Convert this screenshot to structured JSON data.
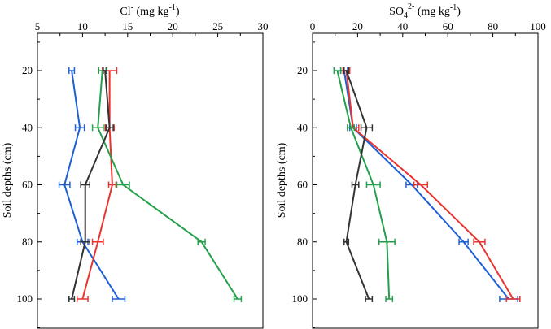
{
  "chart_data": [
    {
      "type": "line",
      "title": "Cl",
      "title_sup": "-",
      "title_suffix": " (mg kg",
      "title_suffix_sup": "-1",
      "title_end": ")",
      "ylabel": "Soil depths (cm)",
      "xlim": [
        5,
        30
      ],
      "x_ticks": [
        "5",
        "10",
        "15",
        "20",
        "25",
        "30"
      ],
      "ylim": [
        8,
        110
      ],
      "y_ticks": [
        "20",
        "40",
        "60",
        "80",
        "100"
      ],
      "y_inverted": true,
      "x_axis_position": "top",
      "depths": [
        20,
        40,
        60,
        80,
        100
      ],
      "series": [
        {
          "color": "#1f5fd6",
          "values": [
            8.8,
            9.7,
            8.0,
            10.0,
            14.0
          ],
          "errors": [
            0.3,
            0.5,
            0.6,
            0.6,
            0.7
          ]
        },
        {
          "color": "#e8332f",
          "values": [
            13.0,
            13.0,
            13.3,
            11.7,
            10.0
          ],
          "errors": [
            0.8,
            0.5,
            0.4,
            0.6,
            0.6
          ]
        },
        {
          "color": "#22a04a",
          "values": [
            12.2,
            11.7,
            14.5,
            23.2,
            27.2
          ],
          "errors": [
            0.4,
            0.6,
            0.7,
            0.4,
            0.4
          ]
        },
        {
          "color": "#333333",
          "values": [
            12.5,
            13.0,
            10.3,
            10.3,
            8.8
          ],
          "errors": [
            0.2,
            0.4,
            0.5,
            0.5,
            0.3
          ]
        }
      ]
    },
    {
      "type": "line",
      "title": "SO",
      "title_sub": "4",
      "title_sup": "2-",
      "title_suffix": " (mg kg",
      "title_suffix_sup": "-1",
      "title_end": ")",
      "ylabel": "Soil depths (cm)",
      "xlim": [
        0,
        100
      ],
      "x_ticks": [
        "0",
        "20",
        "40",
        "60",
        "80",
        "100"
      ],
      "ylim": [
        8,
        110
      ],
      "y_ticks": [
        "20",
        "40",
        "60",
        "80",
        "100"
      ],
      "y_inverted": true,
      "x_axis_position": "top",
      "depths": [
        20,
        40,
        60,
        80,
        100
      ],
      "series": [
        {
          "color": "#1f5fd6",
          "values": [
            14,
            18,
            44,
            67,
            87
          ],
          "errors": [
            1.5,
            1.5,
            2.5,
            2.0,
            4.0
          ]
        },
        {
          "color": "#e8332f",
          "values": [
            15,
            18,
            48,
            74,
            89
          ],
          "errors": [
            1.5,
            2.5,
            3.0,
            2.5,
            3.0
          ]
        },
        {
          "color": "#22a04a",
          "values": [
            11,
            17,
            27,
            33,
            34
          ],
          "errors": [
            1.5,
            1.5,
            3.0,
            3.5,
            1.5
          ]
        },
        {
          "color": "#333333",
          "values": [
            15,
            24,
            19,
            15,
            25
          ],
          "errors": [
            1.0,
            2.5,
            1.5,
            1.0,
            1.5
          ]
        }
      ]
    }
  ]
}
